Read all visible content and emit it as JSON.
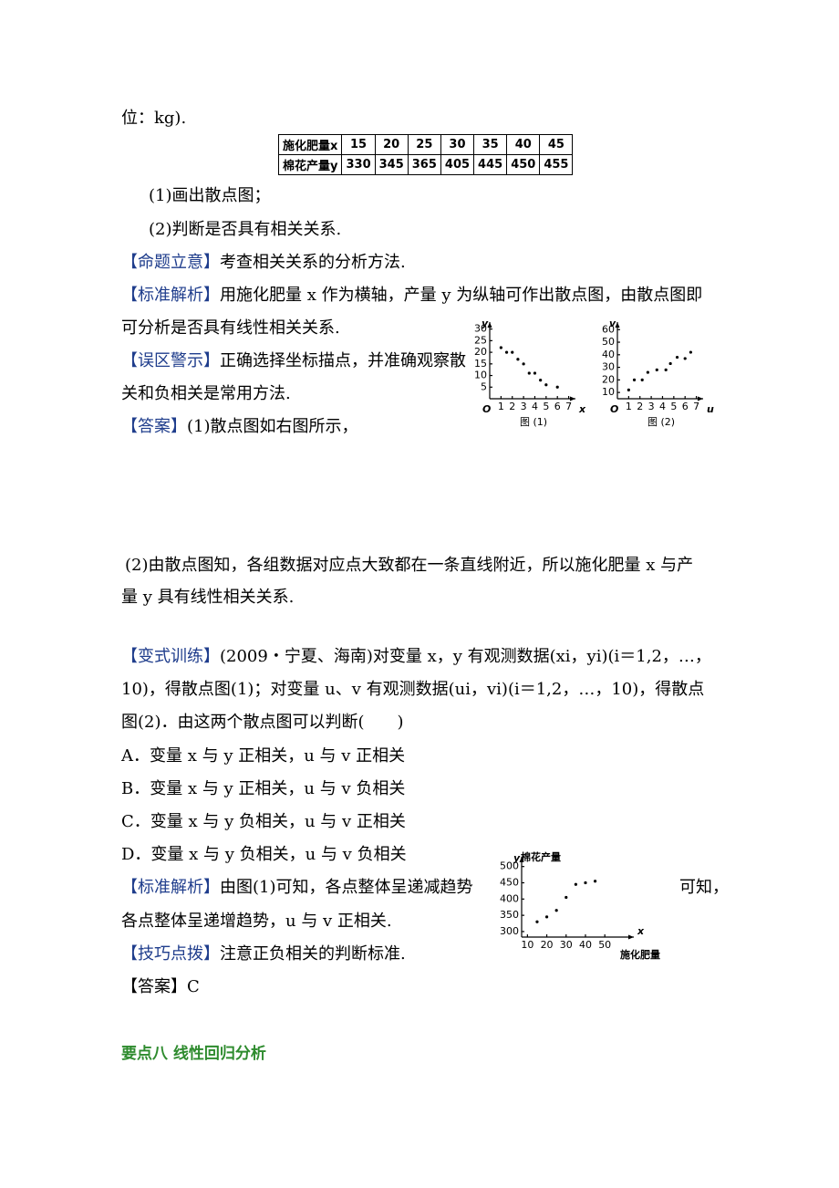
{
  "intro": "位：kg).",
  "table": {
    "rows": [
      {
        "header": "施化肥量x",
        "cells": [
          15,
          20,
          25,
          30,
          35,
          40,
          45
        ]
      },
      {
        "header": "棉花产量y",
        "cells": [
          330,
          345,
          365,
          405,
          445,
          450,
          455
        ]
      }
    ]
  },
  "question": [
    "(1)画出散点图；",
    "(2)判断是否具有相关关系."
  ],
  "proposition": {
    "label": "【命题立意】",
    "text": "考查相关关系的分析方法."
  },
  "analysis": {
    "label": "【标准解析】",
    "lines": [
      "用施化肥量 x 作为横轴，产量 y 为纵轴可作出散点图，由散点图即",
      "可分析是否具有线性相关关系."
    ]
  },
  "warning": {
    "label": "【误区警示】",
    "lines": [
      "正确选择坐标描点，并准确观察散",
      "关和负相关是常用方法."
    ]
  },
  "answer": {
    "label": "【答案】",
    "lines": [
      "(1)散点图如右图所示，",
      "(2)由散点图知，各组数据对应点大致都在一条直线附近，所以施化肥量 x 与产",
      "量 y 具有线性相关关系."
    ]
  },
  "variant": {
    "label": "【变式训练】",
    "lines": [
      "(2009・宁夏、海南)对变量 x，y 有观测数据(xi，yi)(i＝1,2，…，",
      "10)，得散点图(1)；对变量 u、v 有观测数据(ui，vi)(i＝1,2，…，10)，得散点",
      "图(2)．由这两个散点图可以判断(　　)"
    ],
    "options": [
      "A．变量 x 与 y 正相关，u 与 v 正相关",
      "B．变量 x 与 y 正相关，u 与 v 负相关",
      "C．变量 x 与 y 负相关，u 与 v 正相关",
      "D．变量 x 与 y 负相关，u 与 v 负相关"
    ]
  },
  "variant_analysis": {
    "label": "【标准解析】",
    "lines": [
      "由图(1)可知，各点整体呈递减趋势",
      "可知，",
      "各点整体呈递增趋势，u 与 v 正相关."
    ]
  },
  "tip": {
    "label": "【技巧点拨】",
    "text": "注意正负相关的判断标准."
  },
  "variant_answer": "【答案】C",
  "heading": "要点八  线性回归分析",
  "scatter_figures": [
    {
      "caption": "图 (1)",
      "origin": "O",
      "x_label": "x",
      "y_label": "y",
      "xlim": [
        0,
        7.6
      ],
      "ylim": [
        0,
        33
      ],
      "xticks": [
        1,
        2,
        3,
        4,
        5,
        6,
        7
      ],
      "yticks": [
        5,
        10,
        15,
        20,
        25,
        30
      ],
      "points": {
        "x": [
          1,
          1.5,
          2,
          2.5,
          3,
          3.5,
          4,
          4.5,
          5,
          6
        ],
        "y": [
          22,
          20,
          20,
          17,
          15,
          11,
          11,
          8,
          6,
          5
        ]
      }
    },
    {
      "caption": "图 (2)",
      "origin": "O",
      "x_label": "u",
      "y_label": "v",
      "xlim": [
        0,
        7.6
      ],
      "ylim": [
        5,
        66
      ],
      "xticks": [
        1,
        2,
        3,
        4,
        5,
        6,
        7
      ],
      "yticks": [
        10,
        20,
        30,
        40,
        50,
        60
      ],
      "points": {
        "x": [
          1,
          1.5,
          2.2,
          2.7,
          3.5,
          4.3,
          4.7,
          5.3,
          6,
          6.5
        ],
        "y": [
          12,
          20,
          20,
          26,
          28,
          28,
          33,
          38,
          37,
          42
        ]
      }
    }
  ],
  "yield_chart": {
    "y_label": "y",
    "y_title": "棉花产量",
    "x_label": "x",
    "x_title": "施化肥量",
    "xlim": [
      7,
      65
    ],
    "ylim": [
      283,
      530
    ],
    "xticks": [
      10,
      20,
      30,
      40,
      50
    ],
    "yticks": [
      300,
      350,
      400,
      450,
      500
    ]
  }
}
